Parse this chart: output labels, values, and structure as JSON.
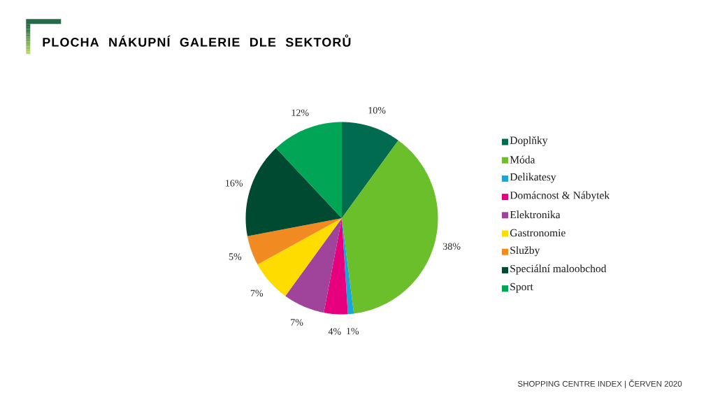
{
  "chart_data": {
    "type": "pie",
    "title": "PLOCHA NÁKUPNÍ GALERIE DLE SEKTORŮ",
    "categories": [
      "Doplňky",
      "Móda",
      "Delikatesy",
      "Domácnost & Nábytek",
      "Elektronika",
      "Gastronomie",
      "Služby",
      "Speciální maloobchod",
      "Sport"
    ],
    "values": [
      10,
      38,
      1,
      4,
      7,
      7,
      5,
      16,
      12
    ],
    "colors": [
      "#006b4f",
      "#6abf2a",
      "#1aa7d8",
      "#e6007e",
      "#a0449b",
      "#ffdc00",
      "#f28a22",
      "#004a32",
      "#00a556"
    ],
    "value_labels": [
      "10%",
      "38%",
      "1%",
      "4%",
      "7%",
      "7%",
      "5%",
      "16%",
      "12%"
    ],
    "legend": "right",
    "annotations": [
      "SHOPPING CENTRE INDEX | ČERVEN 2020"
    ]
  }
}
